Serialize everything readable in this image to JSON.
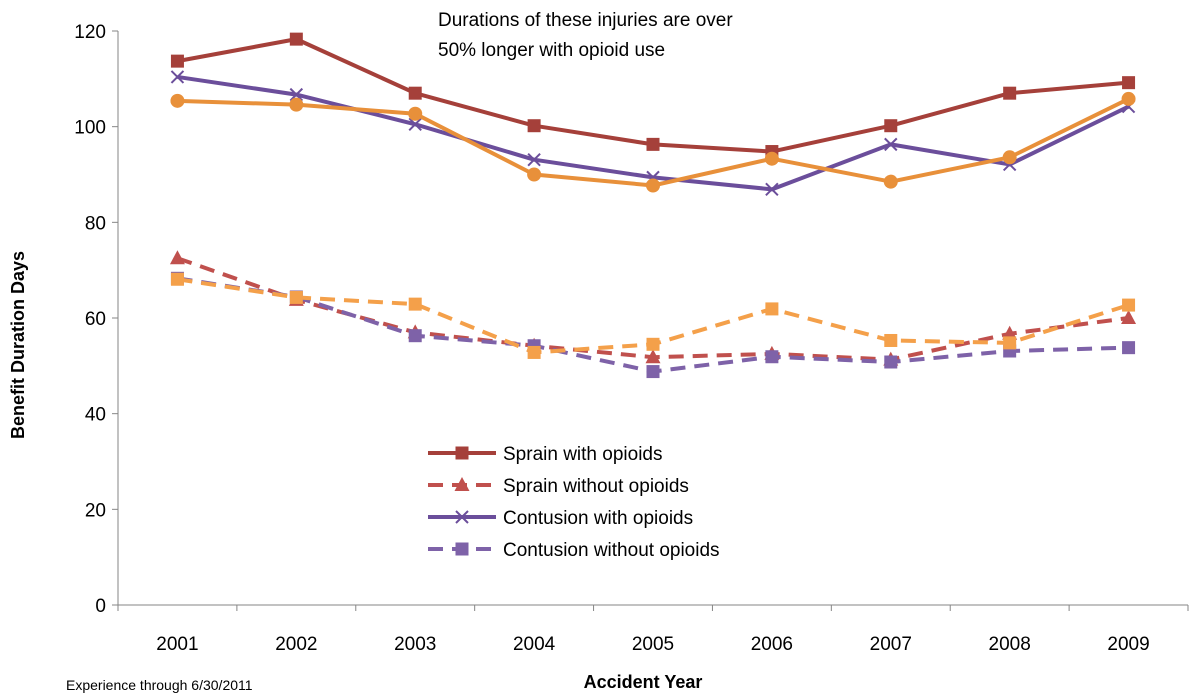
{
  "chart_data": {
    "type": "line",
    "xlabel": "Accident Year",
    "ylabel": "Benefit Duration Days",
    "ylim": [
      0,
      120
    ],
    "yticks": [
      0,
      20,
      40,
      60,
      80,
      100,
      120
    ],
    "categories": [
      "2001",
      "2002",
      "2003",
      "2004",
      "2005",
      "2006",
      "2007",
      "2008",
      "2009"
    ],
    "annotation_lines": [
      "Durations of these injuries are over",
      "50% longer with opioid use"
    ],
    "footnote": "Experience through 6/30/2011",
    "legend_position": "center",
    "series": [
      {
        "name": "Sprain with opioids",
        "values": [
          113.7,
          118.3,
          107.0,
          100.2,
          96.3,
          94.8,
          100.2,
          107.0,
          109.2
        ],
        "color": "#A5403A",
        "dash": "solid",
        "marker": "square",
        "in_legend": true
      },
      {
        "name": "Sprain without opioids",
        "values": [
          72.5,
          63.8,
          57.0,
          54.2,
          51.8,
          52.5,
          51.3,
          56.7,
          60.0
        ],
        "color": "#C0504D",
        "dash": "dashed",
        "marker": "triangle",
        "in_legend": true
      },
      {
        "name": "Contusion with opioids",
        "values": [
          110.4,
          106.7,
          100.5,
          93.1,
          89.4,
          86.9,
          96.3,
          92.1,
          104.2
        ],
        "color": "#6B4E9B",
        "dash": "solid",
        "marker": "x",
        "in_legend": true
      },
      {
        "name": "Contusion without opioids",
        "values": [
          68.3,
          64.4,
          56.3,
          54.2,
          48.8,
          51.9,
          50.8,
          53.1,
          53.8
        ],
        "color": "#7E62A8",
        "dash": "dashed",
        "marker": "square",
        "in_legend": true
      },
      {
        "name": "",
        "values": [
          105.4,
          104.6,
          102.7,
          90.0,
          87.7,
          93.3,
          88.5,
          93.6,
          105.8
        ],
        "color": "#E8903A",
        "dash": "solid",
        "marker": "circle",
        "in_legend": false
      },
      {
        "name": "",
        "values": [
          68.1,
          64.3,
          62.9,
          52.8,
          54.5,
          61.9,
          55.3,
          54.8,
          62.7
        ],
        "color": "#F4A04A",
        "dash": "dashed",
        "marker": "square",
        "in_legend": false
      }
    ]
  }
}
